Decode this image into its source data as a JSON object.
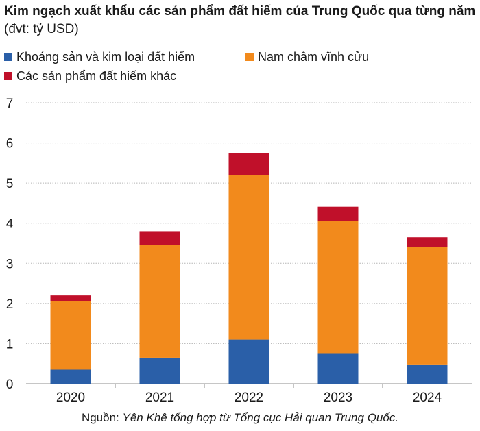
{
  "header": {
    "title_bold": "Kim ngạch xuất khẩu các sản phẩm đất hiếm của Trung Quốc qua từng năm",
    "title_unit": "(đvt: tỷ USD)"
  },
  "source": {
    "prefix": "Nguồn:",
    "text": "Yên Khê tổng hợp từ Tổng cục Hải quan Trung Quốc."
  },
  "chart_data": {
    "type": "bar",
    "stacked": true,
    "categories": [
      "2020",
      "2021",
      "2022",
      "2023",
      "2024"
    ],
    "series": [
      {
        "name": "Khoáng sản và kim loại đất hiếm",
        "color": "#2a5fa8",
        "values": [
          0.35,
          0.65,
          1.1,
          0.76,
          0.48
        ]
      },
      {
        "name": "Nam châm vĩnh cửu",
        "color": "#f28a1c",
        "values": [
          1.7,
          2.8,
          4.1,
          3.3,
          2.92
        ]
      },
      {
        "name": "Các sản phẩm đất hiếm khác",
        "color": "#c0102a",
        "values": [
          0.15,
          0.35,
          0.55,
          0.35,
          0.25
        ]
      }
    ],
    "yticks": [
      "0",
      "1",
      "2",
      "3",
      "4",
      "5",
      "6",
      "7"
    ],
    "ylim": [
      0,
      7
    ],
    "grid": true,
    "legend_position": "top-left"
  }
}
